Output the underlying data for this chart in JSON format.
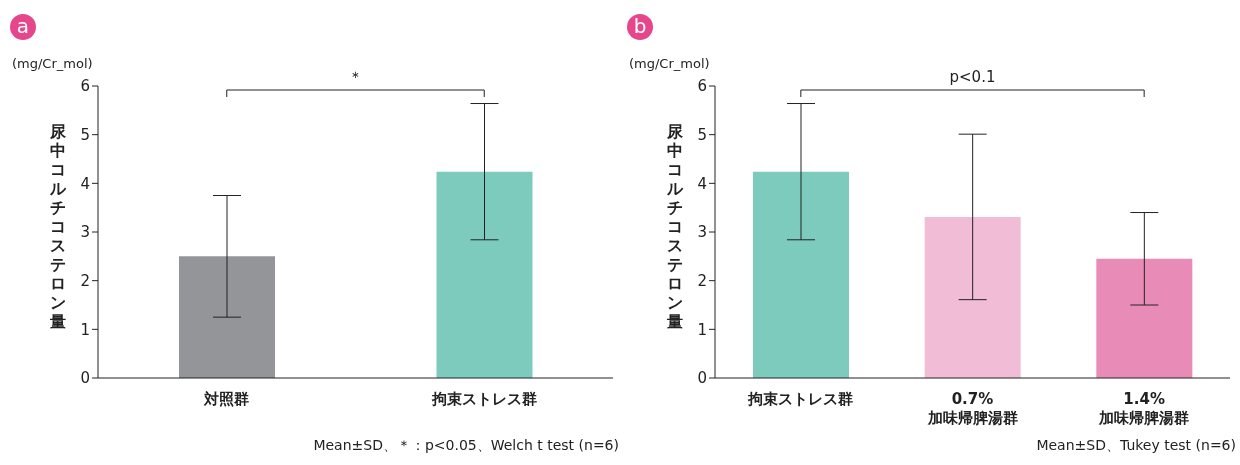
{
  "chart_data": [
    {
      "type": "bar",
      "title": "a",
      "ylabel": "尿中コルチコステロン量",
      "categories": [
        "対照群",
        "拘束ストレス群"
      ],
      "colors": [
        "#939598",
        "#7dcbbd"
      ],
      "values": [
        2.5,
        4.24
      ],
      "errors": [
        1.25,
        1.4
      ],
      "ylim": [
        0,
        6
      ],
      "yticks": [
        0,
        1,
        2,
        3,
        4,
        5,
        6
      ],
      "grid": false,
      "legend": false,
      "annotations": [
        "(mg/Cr_mol)",
        "＊",
        "Mean±SD、＊：p<0.05、Welch t test (n=6)"
      ]
    },
    {
      "type": "bar",
      "title": "b",
      "ylabel": "尿中コルチコステロン量",
      "categories": [
        "拘束ストレス群",
        "0.7%\n加味帰脾湯群",
        "1.4%\n加味帰脾湯群"
      ],
      "colors": [
        "#7dcbbd",
        "#f1bcd6",
        "#e98bb7"
      ],
      "values": [
        4.24,
        3.31,
        2.45
      ],
      "errors": [
        1.4,
        1.7,
        0.95
      ],
      "ylim": [
        0,
        6
      ],
      "yticks": [
        0,
        1,
        2,
        3,
        4,
        5,
        6
      ],
      "grid": false,
      "legend": false,
      "annotations": [
        "(mg/Cr_mol)",
        "p<0.1",
        "Mean±SD、Tukey test (n=6)"
      ]
    }
  ]
}
